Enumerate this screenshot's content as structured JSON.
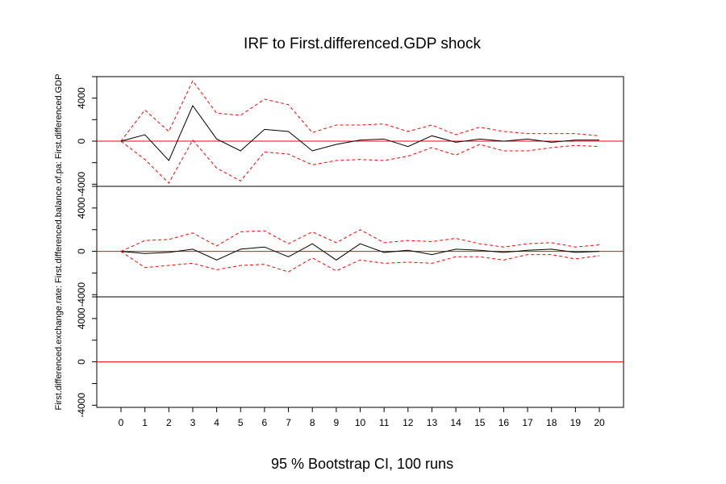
{
  "chart_data": {
    "type": "line",
    "title": "IRF to First.differenced.GDP shock",
    "subtitle": "95 % Bootstrap CI,  100 runs",
    "x": [
      0,
      1,
      2,
      3,
      4,
      5,
      6,
      7,
      8,
      9,
      10,
      11,
      12,
      13,
      14,
      15,
      16,
      17,
      18,
      19,
      20
    ],
    "x_tick_labels": [
      "0",
      "1",
      "2",
      "3",
      "4",
      "5",
      "6",
      "7",
      "8",
      "9",
      "10",
      "11",
      "12",
      "13",
      "14",
      "15",
      "16",
      "17",
      "18",
      "19",
      "20"
    ],
    "colors": {
      "irf": "#000000",
      "ci": "#ff0000",
      "zero": "#ff0000"
    },
    "panels": [
      {
        "side_label": "First.differenced.GDP",
        "ylim": [
          -4200,
          6000
        ],
        "y_ticks": [
          -4000,
          0,
          4000
        ],
        "y_tick_labels": [
          "-4000",
          "0",
          "4000"
        ],
        "irf": [
          0,
          600,
          -1800,
          3300,
          200,
          -900,
          1100,
          900,
          -900,
          -300,
          100,
          200,
          -500,
          500,
          -100,
          200,
          0,
          200,
          -100,
          100,
          100
        ],
        "upper": [
          0,
          2900,
          900,
          5600,
          2600,
          2400,
          3900,
          3400,
          800,
          1500,
          1500,
          1600,
          900,
          1500,
          600,
          1300,
          900,
          700,
          700,
          700,
          500
        ],
        "lower": [
          0,
          -1700,
          -3900,
          100,
          -2500,
          -3700,
          -1000,
          -1200,
          -2200,
          -1800,
          -1700,
          -1800,
          -1400,
          -600,
          -1300,
          -300,
          -900,
          -900,
          -600,
          -400,
          -500
        ]
      },
      {
        "side_label": "First.differenced.balance.of.pa",
        "ylim": [
          -4200,
          6000
        ],
        "y_ticks": [
          -4000,
          0,
          4000
        ],
        "y_tick_labels": [
          "-4000",
          "0",
          "4000"
        ],
        "irf": [
          0,
          -200,
          -100,
          200,
          -800,
          200,
          400,
          -500,
          700,
          -800,
          700,
          -100,
          100,
          -300,
          200,
          100,
          -100,
          100,
          200,
          -100,
          0
        ],
        "upper": [
          0,
          1000,
          1100,
          1700,
          500,
          1800,
          1900,
          700,
          1800,
          800,
          2000,
          800,
          1000,
          900,
          1200,
          700,
          400,
          700,
          800,
          400,
          600
        ],
        "lower": [
          0,
          -1500,
          -1300,
          -1100,
          -1700,
          -1300,
          -1200,
          -1900,
          -600,
          -1800,
          -800,
          -1100,
          -1000,
          -1100,
          -500,
          -500,
          -800,
          -300,
          -300,
          -700,
          -400
        ]
      },
      {
        "side_label": "First.differenced.exchange.rate",
        "ylim": [
          -4200,
          6000
        ],
        "y_ticks": [
          -4000,
          0,
          4000
        ],
        "y_tick_labels": [
          "-4000",
          "0",
          "4000"
        ],
        "irf": null,
        "upper": null,
        "lower": null
      }
    ]
  }
}
